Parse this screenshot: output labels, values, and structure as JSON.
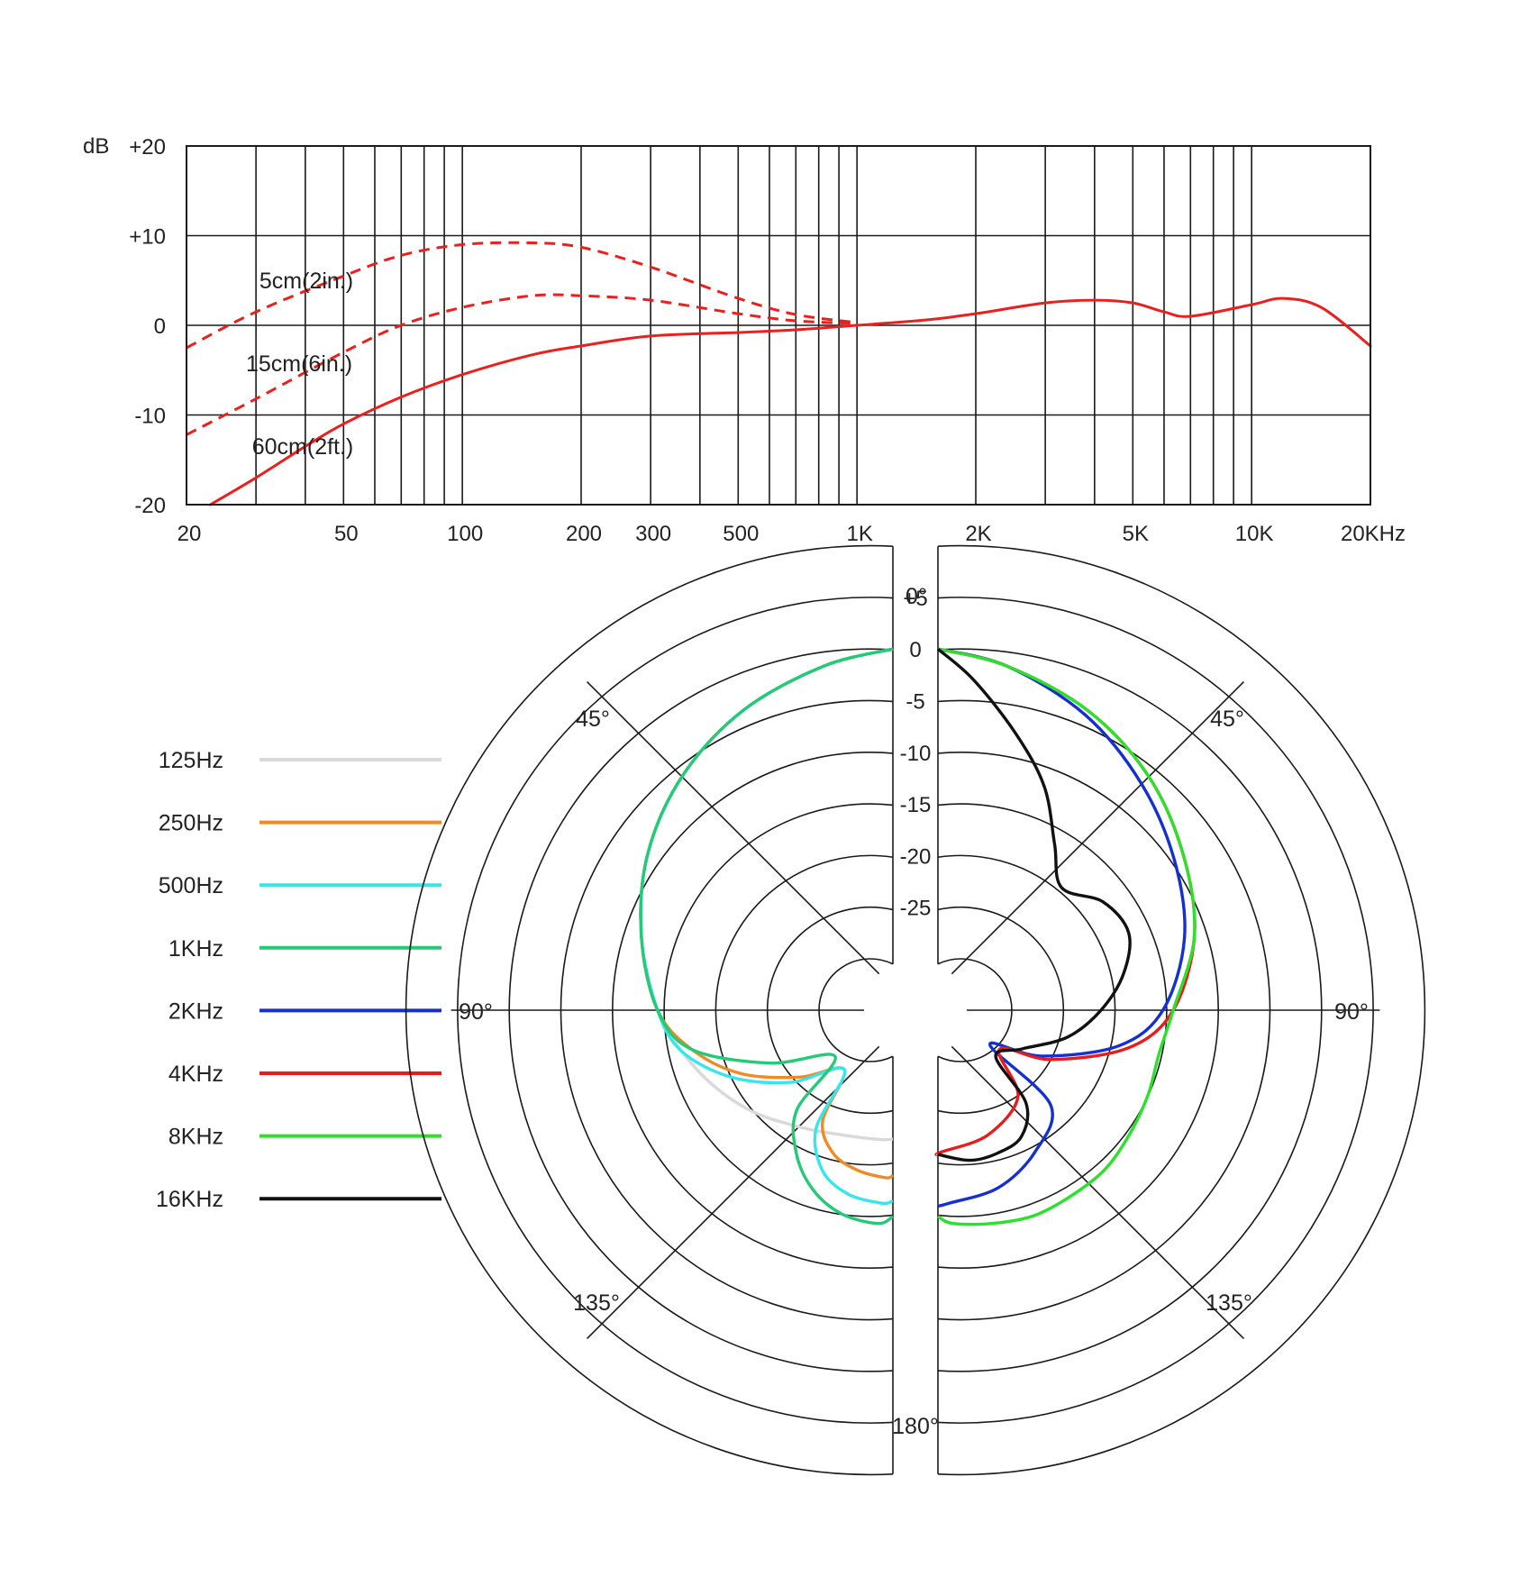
{
  "chart_data": [
    {
      "type": "line",
      "title": "",
      "xscale": "log",
      "xlim": [
        20,
        20000
      ],
      "ylim": [
        -20,
        20
      ],
      "yunit": "dB",
      "yticks": [
        20,
        10,
        0,
        -10,
        -20
      ],
      "ytick_labels": [
        "+20",
        "+10",
        "0",
        "-10",
        "-20"
      ],
      "x_grid": [
        20,
        30,
        40,
        50,
        60,
        70,
        80,
        90,
        100,
        200,
        300,
        400,
        500,
        600,
        700,
        800,
        900,
        1000,
        2000,
        3000,
        4000,
        5000,
        6000,
        7000,
        8000,
        9000,
        10000,
        20000
      ],
      "xticks": [
        20,
        50,
        100,
        200,
        300,
        500,
        1000,
        2000,
        5000,
        10000,
        20000
      ],
      "xtick_labels": [
        "20",
        "50",
        "100",
        "200",
        "300",
        "500",
        "1K",
        "2K",
        "5K",
        "10K",
        "20KHz"
      ],
      "colors": {
        "curve": "#e8211f",
        "grid": "#1a1a1a"
      },
      "series": [
        {
          "name": "5cm(2in.)",
          "style": "dashed",
          "x": [
            20,
            30,
            50,
            70,
            100,
            150,
            200,
            300,
            500,
            700,
            1000
          ],
          "y": [
            -2.5,
            1.5,
            5.5,
            7.8,
            9,
            9.2,
            8.7,
            6.5,
            3,
            1.2,
            0.3
          ]
        },
        {
          "name": "15cm(6in.)",
          "style": "dashed",
          "x": [
            20,
            30,
            50,
            70,
            100,
            150,
            200,
            300,
            500,
            700,
            1000
          ],
          "y": [
            -12.2,
            -8.2,
            -3,
            0,
            2,
            3.3,
            3.3,
            2.8,
            1.3,
            0.5,
            0.2
          ]
        },
        {
          "name": "60cm(2ft.)",
          "style": "solid",
          "x": [
            23,
            30,
            40,
            50,
            70,
            100,
            150,
            200,
            300,
            500,
            700,
            1000,
            1500,
            2000,
            3000,
            4000,
            5000,
            6000,
            7000,
            10000,
            12000,
            15000,
            20000
          ],
          "y": [
            -20,
            -17,
            -13.5,
            -11,
            -8,
            -5.5,
            -3.3,
            -2.3,
            -1.2,
            -0.8,
            -0.5,
            0,
            0.6,
            1.3,
            2.5,
            2.8,
            2.5,
            1.5,
            1.0,
            2.3,
            3.0,
            2.0,
            -2.3
          ]
        }
      ]
    },
    {
      "type": "polar",
      "title": "",
      "angle_labels": {
        "top": "0°",
        "upper_left": "45°",
        "upper_right": "45°",
        "left": "90°",
        "right": "90°",
        "lower_left": "135°",
        "lower_right": "135°",
        "bottom": "180°"
      },
      "radial_ticks": [
        5,
        0,
        -5,
        -10,
        -15,
        -20,
        -25
      ],
      "radial_tick_labels": [
        "+5",
        "0",
        "-5",
        "-10",
        "-15",
        "-20",
        "-25"
      ],
      "rlim": [
        -30,
        5
      ],
      "series": [
        {
          "name": "125Hz",
          "color": "#d9d9d9",
          "side": "left",
          "angles": [
            0,
            15,
            30,
            45,
            60,
            75,
            90,
            105,
            120,
            135,
            150,
            165,
            180
          ],
          "r": [
            0,
            -0.5,
            -1.5,
            -3,
            -5,
            -7.5,
            -10,
            -13,
            -16,
            -19,
            -21,
            -22,
            -22.5
          ]
        },
        {
          "name": "250Hz",
          "color": "#f08a24",
          "side": "left",
          "angles": [
            0,
            15,
            30,
            45,
            60,
            75,
            90,
            100,
            110,
            120,
            130,
            140,
            150,
            160,
            170,
            180
          ],
          "r": [
            0,
            -0.5,
            -1.5,
            -3,
            -5,
            -7.5,
            -10,
            -13,
            -17,
            -22,
            -26,
            -21,
            -19,
            -18.5,
            -18.5,
            -19
          ]
        },
        {
          "name": "500Hz",
          "color": "#37e6ec",
          "side": "left",
          "angles": [
            0,
            15,
            30,
            45,
            60,
            75,
            90,
            100,
            110,
            120,
            130,
            140,
            150,
            160,
            170,
            180
          ],
          "r": [
            0,
            -0.5,
            -1.5,
            -3,
            -5,
            -7.5,
            -10,
            -12,
            -16,
            -21,
            -26,
            -20,
            -17,
            -16,
            -16,
            -16.5
          ]
        },
        {
          "name": "1KHz",
          "color": "#26c977",
          "side": "left",
          "angles": [
            0,
            15,
            30,
            45,
            60,
            75,
            90,
            100,
            110,
            120,
            130,
            140,
            150,
            160,
            170,
            180
          ],
          "r": [
            0,
            -0.5,
            -1.5,
            -3,
            -5,
            -7.5,
            -10,
            -13,
            -20,
            -26,
            -20,
            -17,
            -15,
            -14,
            -14,
            -15
          ]
        },
        {
          "name": "2KHz",
          "color": "#1530d0",
          "side": "right",
          "angles": [
            0,
            15,
            30,
            45,
            60,
            75,
            90,
            100,
            110,
            115,
            125,
            140,
            155,
            170,
            180
          ],
          "r": [
            0,
            -0.5,
            -2,
            -4,
            -6,
            -8,
            -11,
            -15,
            -22,
            -27,
            -19,
            -17,
            -16,
            -16,
            -16
          ]
        },
        {
          "name": "4KHz",
          "color": "#e81c1c",
          "side": "right",
          "angles": [
            0,
            15,
            30,
            45,
            60,
            75,
            90,
            100,
            110,
            115,
            130,
            150,
            170,
            180
          ],
          "r": [
            0,
            -0.5,
            -1.5,
            -3,
            -5,
            -7,
            -10,
            -14,
            -21,
            -26,
            -22,
            -21,
            -21,
            -21
          ]
        },
        {
          "name": "8KHz",
          "color": "#2ee02e",
          "side": "right",
          "angles": [
            0,
            15,
            30,
            45,
            60,
            75,
            90,
            100,
            110,
            120,
            130,
            140,
            150,
            160,
            170,
            180
          ],
          "r": [
            0,
            -0.5,
            -1.5,
            -3,
            -5,
            -7,
            -10,
            -11,
            -11,
            -11,
            -11,
            -11.5,
            -12,
            -13,
            -14,
            -15
          ]
        },
        {
          "name": "16KHz",
          "color": "#111111",
          "side": "right",
          "angles": [
            0,
            10,
            20,
            30,
            40,
            50,
            60,
            70,
            80,
            90,
            100,
            110,
            120,
            130,
            140,
            150,
            160,
            180
          ],
          "r": [
            0,
            -2.5,
            -6.5,
            -10,
            -14,
            -16.5,
            -14,
            -13,
            -14.5,
            -17,
            -20,
            -24,
            -26,
            -21,
            -19,
            -19,
            -19.5,
            -21
          ]
        }
      ]
    }
  ],
  "legend": [
    {
      "label": "125Hz",
      "color": "#d9d9d9"
    },
    {
      "label": "250Hz",
      "color": "#f08a24"
    },
    {
      "label": "500Hz",
      "color": "#37e6ec"
    },
    {
      "label": "1KHz",
      "color": "#26c977"
    },
    {
      "label": "2KHz",
      "color": "#1530d0"
    },
    {
      "label": "4KHz",
      "color": "#e81c1c"
    },
    {
      "label": "8KHz",
      "color": "#2ee02e"
    },
    {
      "label": "16KHz",
      "color": "#111111"
    }
  ]
}
